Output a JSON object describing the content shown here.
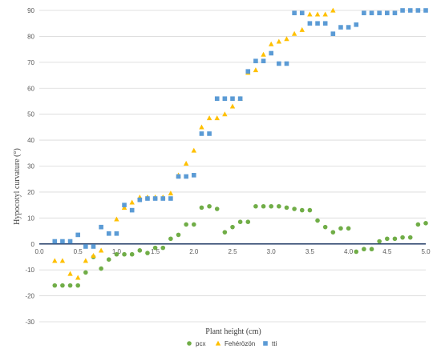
{
  "chart_data": {
    "type": "scatter",
    "title": "",
    "xlabel": "Plant height (cm)",
    "ylabel": "Hypocotyl curvature (°)",
    "xlim": [
      0,
      5
    ],
    "ylim": [
      -30,
      90
    ],
    "x_ticks": [
      "0.0",
      "0.5",
      "1.0",
      "1.5",
      "2.0",
      "2.5",
      "3.0",
      "3.5",
      "4.0",
      "4.5",
      "5.0"
    ],
    "y_ticks": [
      "-30",
      "-20",
      "-10",
      "0",
      "10",
      "20",
      "30",
      "40",
      "50",
      "60",
      "70",
      "80",
      "90"
    ],
    "grid": "horizontal",
    "legend_position": "bottom",
    "zero_line_color": "#1f3864",
    "series": [
      {
        "name": "pcx",
        "marker": "circle",
        "color": "#70ad47",
        "points": [
          [
            0.2,
            -16
          ],
          [
            0.3,
            -16
          ],
          [
            0.4,
            -16
          ],
          [
            0.5,
            -16
          ],
          [
            0.6,
            -11
          ],
          [
            0.7,
            -5
          ],
          [
            0.8,
            -9.5
          ],
          [
            0.9,
            -6
          ],
          [
            1.0,
            -4
          ],
          [
            1.1,
            -4
          ],
          [
            1.2,
            -4
          ],
          [
            1.3,
            -2.5
          ],
          [
            1.4,
            -3.5
          ],
          [
            1.5,
            -1.5
          ],
          [
            1.6,
            -1.5
          ],
          [
            1.7,
            2
          ],
          [
            1.8,
            3.5
          ],
          [
            1.9,
            7.5
          ],
          [
            2.0,
            7.5
          ],
          [
            2.1,
            14
          ],
          [
            2.2,
            14.5
          ],
          [
            2.3,
            13.5
          ],
          [
            2.4,
            4.5
          ],
          [
            2.5,
            6.5
          ],
          [
            2.6,
            8.5
          ],
          [
            2.7,
            8.5
          ],
          [
            2.8,
            14.5
          ],
          [
            2.9,
            14.5
          ],
          [
            3.0,
            14.5
          ],
          [
            3.1,
            14.5
          ],
          [
            3.2,
            14
          ],
          [
            3.3,
            13.5
          ],
          [
            3.4,
            13
          ],
          [
            3.5,
            13
          ],
          [
            3.6,
            9
          ],
          [
            3.7,
            6.5
          ],
          [
            3.8,
            4.5
          ],
          [
            3.9,
            6
          ],
          [
            4.0,
            6
          ],
          [
            4.1,
            -3
          ],
          [
            4.2,
            -2
          ],
          [
            4.3,
            -2
          ],
          [
            4.4,
            1
          ],
          [
            4.5,
            2
          ],
          [
            4.6,
            2
          ],
          [
            4.7,
            2.5
          ],
          [
            4.8,
            2.5
          ],
          [
            4.9,
            7.5
          ],
          [
            5.0,
            8
          ]
        ]
      },
      {
        "name": "Fehérözön",
        "marker": "triangle",
        "color": "#ffc000",
        "points": [
          [
            0.2,
            -6.5
          ],
          [
            0.3,
            -6.5
          ],
          [
            0.4,
            -11.5
          ],
          [
            0.5,
            -13
          ],
          [
            0.6,
            -6.5
          ],
          [
            0.7,
            -4.5
          ],
          [
            0.8,
            -2.5
          ],
          [
            1.0,
            9.5
          ],
          [
            1.1,
            14
          ],
          [
            1.2,
            16
          ],
          [
            1.3,
            18
          ],
          [
            1.4,
            18
          ],
          [
            1.5,
            18
          ],
          [
            1.6,
            18
          ],
          [
            1.7,
            19.5
          ],
          [
            1.8,
            26.5
          ],
          [
            1.9,
            31
          ],
          [
            2.0,
            36
          ],
          [
            2.1,
            45
          ],
          [
            2.2,
            48.5
          ],
          [
            2.3,
            48.5
          ],
          [
            2.4,
            50
          ],
          [
            2.5,
            53
          ],
          [
            2.6,
            56
          ],
          [
            2.7,
            66
          ],
          [
            2.8,
            67
          ],
          [
            2.9,
            73
          ],
          [
            3.0,
            77
          ],
          [
            3.1,
            78
          ],
          [
            3.2,
            79
          ],
          [
            3.3,
            81
          ],
          [
            3.4,
            82.5
          ],
          [
            3.5,
            88.5
          ],
          [
            3.6,
            88.5
          ],
          [
            3.7,
            88.5
          ],
          [
            3.8,
            90
          ]
        ]
      },
      {
        "name": "tti",
        "marker": "square",
        "color": "#5b9bd5",
        "points": [
          [
            0.2,
            1
          ],
          [
            0.3,
            1
          ],
          [
            0.4,
            1
          ],
          [
            0.5,
            3.5
          ],
          [
            0.6,
            -1
          ],
          [
            0.7,
            -1
          ],
          [
            0.8,
            6.5
          ],
          [
            0.9,
            4
          ],
          [
            1.0,
            4
          ],
          [
            1.1,
            15
          ],
          [
            1.2,
            13
          ],
          [
            1.3,
            17
          ],
          [
            1.4,
            17.5
          ],
          [
            1.5,
            17.5
          ],
          [
            1.6,
            17.5
          ],
          [
            1.7,
            17.5
          ],
          [
            1.8,
            26
          ],
          [
            1.9,
            26
          ],
          [
            2.0,
            26.5
          ],
          [
            2.1,
            42.5
          ],
          [
            2.2,
            42.5
          ],
          [
            2.3,
            56
          ],
          [
            2.4,
            56
          ],
          [
            2.5,
            56
          ],
          [
            2.6,
            56
          ],
          [
            2.7,
            66.5
          ],
          [
            2.8,
            70.5
          ],
          [
            2.9,
            70.5
          ],
          [
            3.0,
            73.5
          ],
          [
            3.1,
            69.5
          ],
          [
            3.2,
            69.5
          ],
          [
            3.3,
            89
          ],
          [
            3.4,
            89
          ],
          [
            3.5,
            85
          ],
          [
            3.6,
            85
          ],
          [
            3.7,
            85
          ],
          [
            3.8,
            81
          ],
          [
            3.9,
            83.5
          ],
          [
            4.0,
            83.5
          ],
          [
            4.1,
            84.5
          ],
          [
            4.2,
            89
          ],
          [
            4.3,
            89
          ],
          [
            4.4,
            89
          ],
          [
            4.5,
            89
          ],
          [
            4.6,
            89
          ],
          [
            4.7,
            90
          ],
          [
            4.8,
            90
          ],
          [
            4.9,
            90
          ],
          [
            5.0,
            90
          ]
        ]
      }
    ]
  }
}
